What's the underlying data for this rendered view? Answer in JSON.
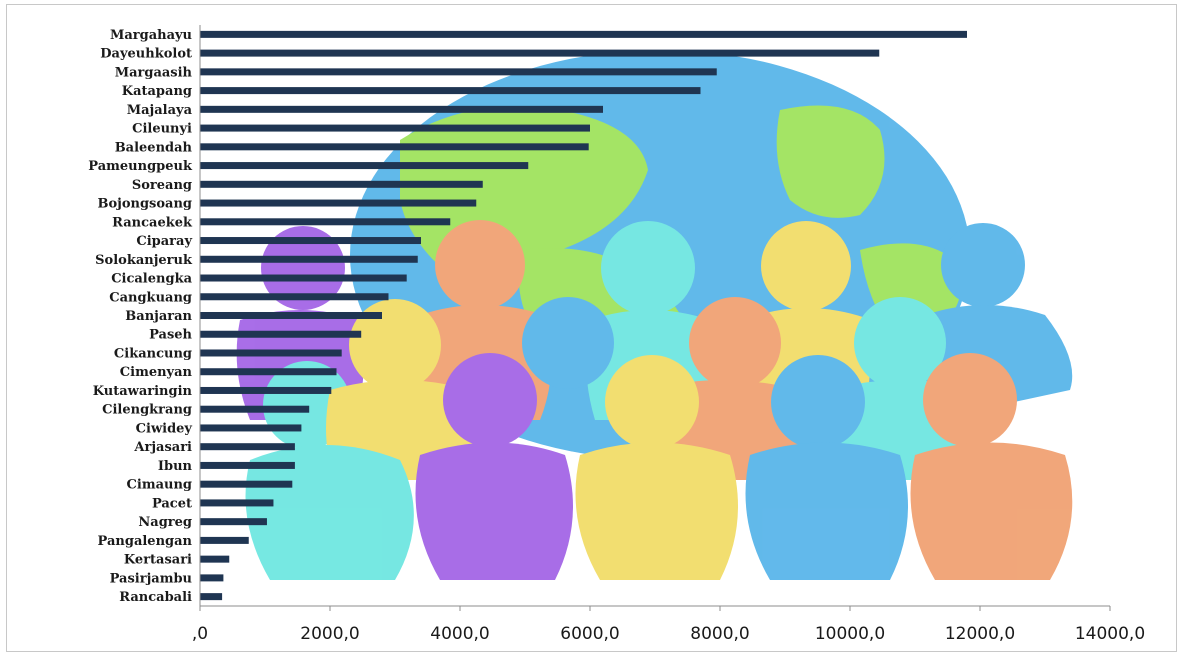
{
  "chart_data": {
    "type": "bar",
    "orientation": "horizontal",
    "title": "",
    "xlabel": "",
    "ylabel": "",
    "xlim": [
      0,
      14000
    ],
    "grid": false,
    "legend": "none",
    "bar_color": "#1f3552",
    "x_tick_labels": [
      ",0",
      "2000,0",
      "4000,0",
      "6000,0",
      "8000,0",
      "10000,0",
      "12000,0",
      "14000,0"
    ],
    "x_ticks": [
      0,
      2000,
      4000,
      6000,
      8000,
      10000,
      12000,
      14000
    ],
    "categories": [
      "Margahayu",
      "Dayeuhkolot",
      "Margaasih",
      "Katapang",
      "Majalaya",
      "Cileunyi",
      "Baleendah",
      "Pameungpeuk",
      "Soreang",
      "Bojongsoang",
      "Rancaekek",
      "Ciparay",
      "Solokanjeruk",
      "Cicalengka",
      "Cangkuang",
      "Banjaran",
      "Paseh",
      "Cikancung",
      "Cimenyan",
      "Kutawaringin",
      "Cilengkrang",
      "Ciwidey",
      "Arjasari",
      "Ibun",
      "Cimaung",
      "Pacet",
      "Nagreg",
      "Pangalengan",
      "Kertasari",
      "Pasirjambu",
      "Rancabali"
    ],
    "values": [
      11800,
      10450,
      7950,
      7700,
      6200,
      6000,
      5980,
      5050,
      4350,
      4250,
      3850,
      3400,
      3350,
      3180,
      2900,
      2800,
      2480,
      2180,
      2100,
      2020,
      1680,
      1560,
      1460,
      1460,
      1420,
      1130,
      1030,
      750,
      450,
      360,
      340
    ]
  },
  "illustration": {
    "description_icon": "globe-with-people-icon",
    "colors": [
      "#56b4e9",
      "#9ee35a",
      "#f0a070",
      "#f2dc66",
      "#a263e6",
      "#6ce6e0"
    ]
  }
}
